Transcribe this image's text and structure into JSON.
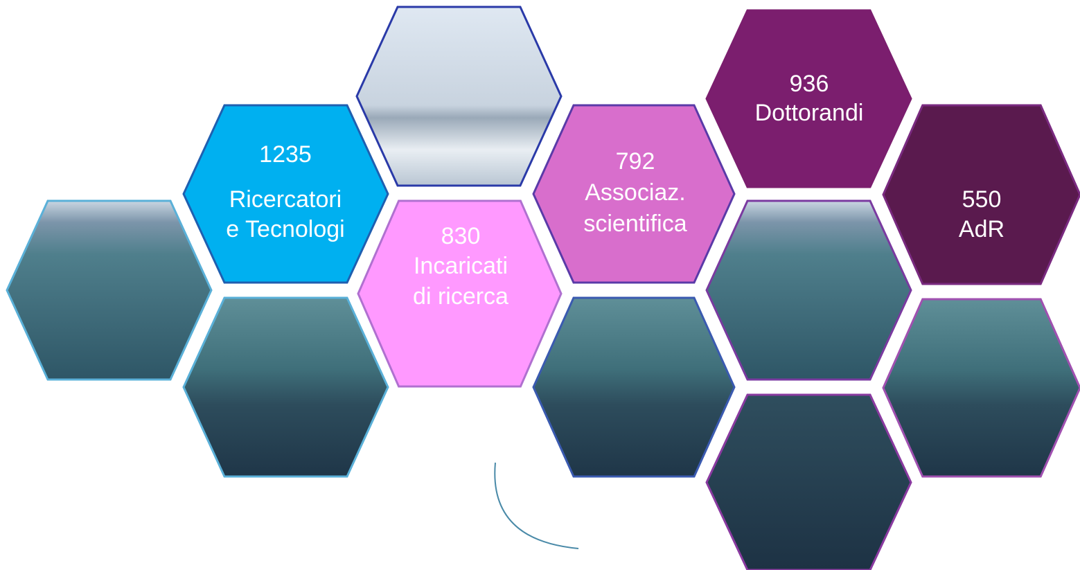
{
  "tiles": [
    {
      "number": "1235",
      "lines": [
        "Ricercatori",
        "e Tecnologi"
      ]
    },
    {
      "number": "830",
      "lines": [
        "Incaricati",
        "di ricerca"
      ]
    },
    {
      "number": "792",
      "lines": [
        "Associaz.",
        "scientifica"
      ]
    },
    {
      "number": "936",
      "lines": [
        "Dottorandi"
      ]
    },
    {
      "number": "550",
      "lines": [
        "AdR"
      ]
    }
  ]
}
